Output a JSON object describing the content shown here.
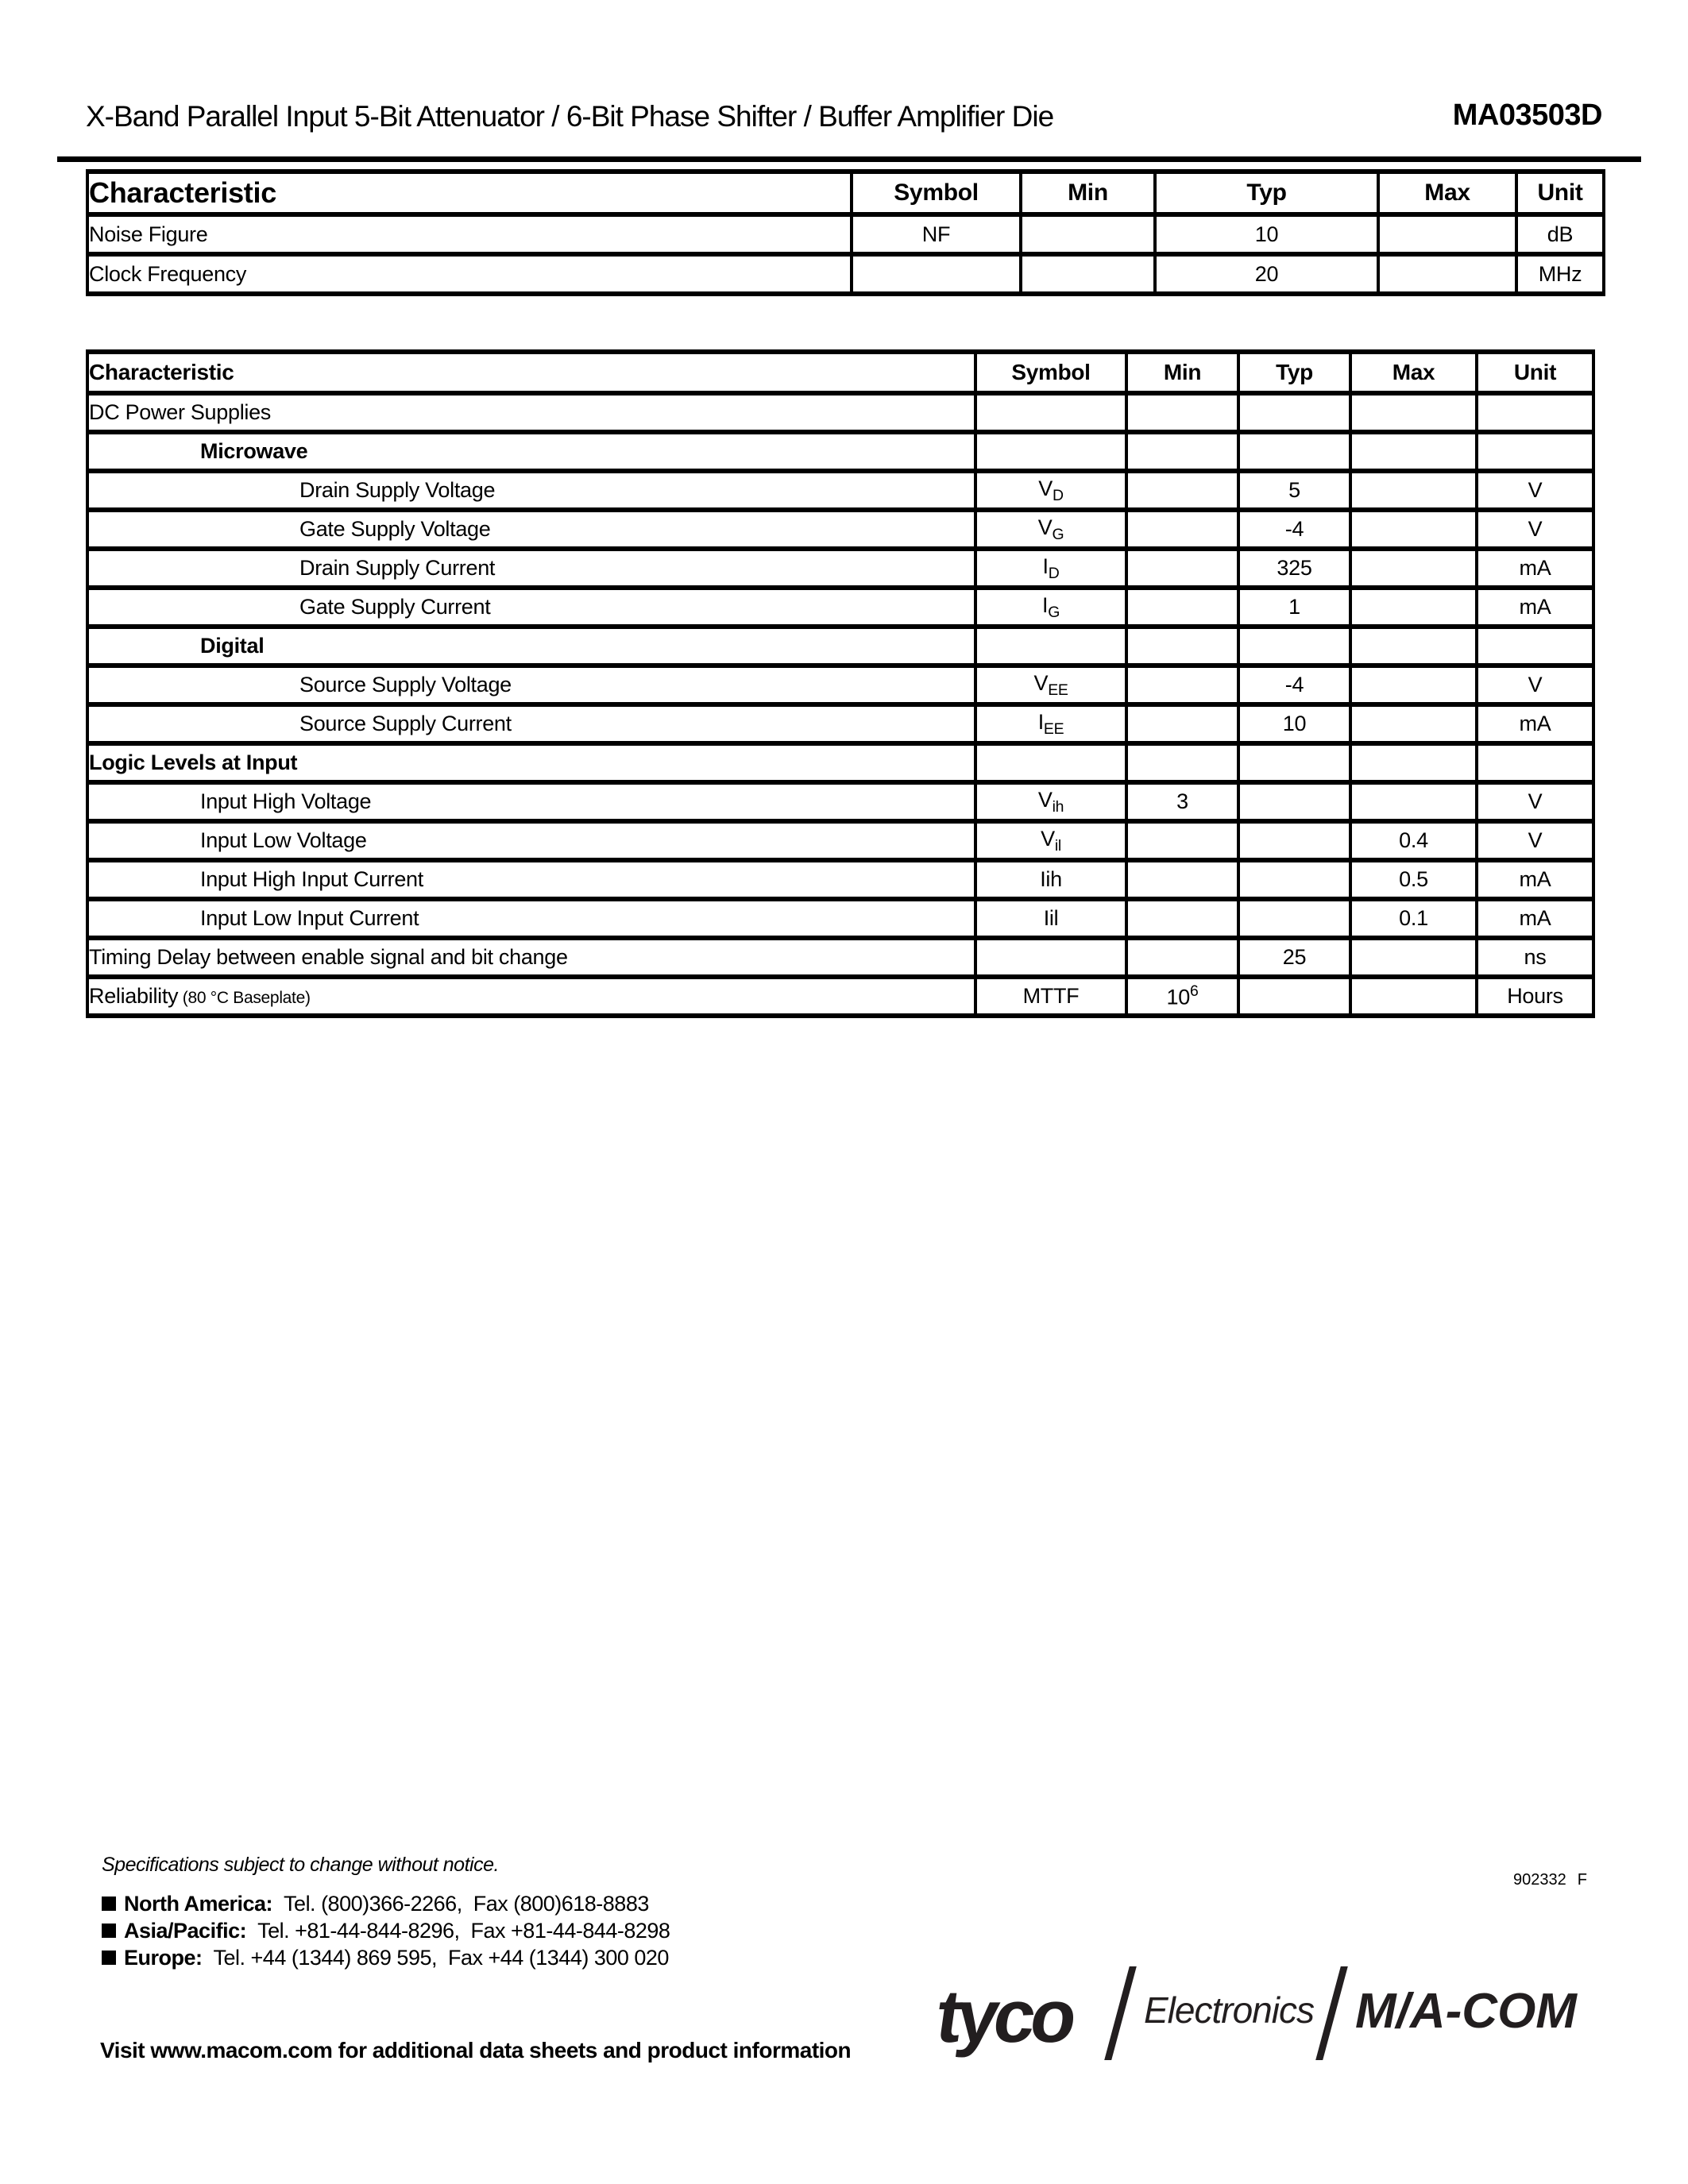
{
  "header": {
    "title": "X-Band Parallel Input 5-Bit Attenuator / 6-Bit Phase Shifter / Buffer Amplifier Die",
    "part_number": "MA03503D"
  },
  "spec_table_primary": {
    "columns": [
      "Characteristic",
      "Symbol",
      "Min",
      "Typ",
      "Max",
      "Unit"
    ],
    "rows": [
      {
        "characteristic": "Noise Figure",
        "indent": 0,
        "bold": false,
        "symbol": "NF",
        "min": "",
        "typ": "10",
        "max": "",
        "unit": "dB"
      },
      {
        "characteristic": "Clock Frequency",
        "indent": 0,
        "bold": false,
        "symbol": "",
        "min": "",
        "typ": "20",
        "max": "",
        "unit": "MHz"
      }
    ]
  },
  "spec_table_detail": {
    "columns": [
      "Characteristic",
      "Symbol",
      "Min",
      "Typ",
      "Max",
      "Unit"
    ],
    "rows": [
      {
        "characteristic": "DC Power Supplies",
        "indent": 0,
        "bold": false,
        "symbol": "",
        "min": "",
        "typ": "",
        "max": "",
        "unit": ""
      },
      {
        "characteristic": "Microwave",
        "indent": 1,
        "bold": true,
        "symbol": "",
        "min": "",
        "typ": "",
        "max": "",
        "unit": ""
      },
      {
        "characteristic": "Drain Supply Voltage",
        "indent": 2,
        "bold": false,
        "symbol": {
          "base": "V",
          "sub": "D"
        },
        "min": "",
        "typ": "5",
        "max": "",
        "unit": "V"
      },
      {
        "characteristic": "Gate Supply Voltage",
        "indent": 2,
        "bold": false,
        "symbol": {
          "base": "V",
          "sub": "G"
        },
        "min": "",
        "typ": "-4",
        "max": "",
        "unit": "V"
      },
      {
        "characteristic": "Drain Supply Current",
        "indent": 2,
        "bold": false,
        "symbol": {
          "base": "I",
          "sub": "D"
        },
        "min": "",
        "typ": "325",
        "max": "",
        "unit": "mA"
      },
      {
        "characteristic": "Gate Supply Current",
        "indent": 2,
        "bold": false,
        "symbol": {
          "base": "I",
          "sub": "G"
        },
        "min": "",
        "typ": "1",
        "max": "",
        "unit": "mA"
      },
      {
        "characteristic": "Digital",
        "indent": 1,
        "bold": true,
        "symbol": "",
        "min": "",
        "typ": "",
        "max": "",
        "unit": ""
      },
      {
        "characteristic": "Source Supply Voltage",
        "indent": 2,
        "bold": false,
        "symbol": {
          "base": "V",
          "sub": "EE"
        },
        "min": "",
        "typ": "-4",
        "max": "",
        "unit": "V"
      },
      {
        "characteristic": "Source Supply Current",
        "indent": 2,
        "bold": false,
        "symbol": {
          "base": "I",
          "sub": "EE"
        },
        "min": "",
        "typ": "10",
        "max": "",
        "unit": "mA"
      },
      {
        "characteristic": "Logic Levels at Input",
        "indent": 0,
        "bold": true,
        "symbol": "",
        "min": "",
        "typ": "",
        "max": "",
        "unit": ""
      },
      {
        "characteristic": "Input High Voltage",
        "indent": 1,
        "bold": false,
        "symbol": {
          "base": "V",
          "sub": "ih"
        },
        "min": "3",
        "typ": "",
        "max": "",
        "unit": "V"
      },
      {
        "characteristic": "Input Low Voltage",
        "indent": 1,
        "bold": false,
        "symbol": {
          "base": "V",
          "sub": "il"
        },
        "min": "",
        "typ": "",
        "max": "0.4",
        "unit": "V"
      },
      {
        "characteristic": "Input High Input Current",
        "indent": 1,
        "bold": false,
        "symbol": "Iih",
        "min": "",
        "typ": "",
        "max": "0.5",
        "unit": "mA"
      },
      {
        "characteristic": "Input Low Input Current",
        "indent": 1,
        "bold": false,
        "symbol": "Iil",
        "min": "",
        "typ": "",
        "max": "0.1",
        "unit": "mA"
      },
      {
        "characteristic": "Timing Delay between enable signal and bit change",
        "indent": 0,
        "bold": false,
        "symbol": "",
        "min": "",
        "typ": "25",
        "max": "",
        "unit": "ns"
      },
      {
        "characteristic": "Reliability",
        "characteristic_note": "(80 °C Baseplate)",
        "indent": 0,
        "bold": false,
        "symbol": "MTTF",
        "min": {
          "base": "10",
          "sup": "6"
        },
        "typ": "",
        "max": "",
        "unit": "Hours"
      }
    ]
  },
  "footer": {
    "notice": "Specifications subject to change without notice.",
    "doc_number": "902332",
    "doc_rev": "F",
    "contacts": [
      {
        "region": "North America:",
        "details": "Tel. (800)366-2266,  Fax (800)618-8883"
      },
      {
        "region": "Asia/Pacific:",
        "details": "Tel. +81-44-844-8296,  Fax +81-44-844-8298"
      },
      {
        "region": "Europe:",
        "details": "Tel. +44 (1344) 869 595,  Fax +44 (1344) 300 020"
      }
    ],
    "visit": "Visit www.macom.com for additional data sheets and product information"
  },
  "logo": {
    "brand": "tyco",
    "division": "Electronics",
    "company": "M/A-COM"
  }
}
